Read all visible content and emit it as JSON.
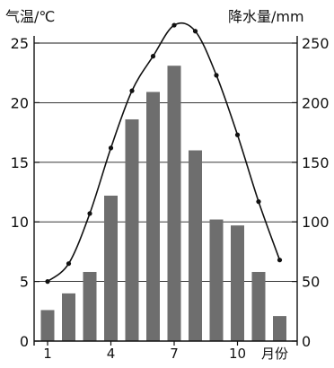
{
  "chart_data": {
    "type": "bar+line",
    "x": {
      "months": [
        1,
        2,
        3,
        4,
        5,
        6,
        7,
        8,
        9,
        10,
        11,
        12
      ],
      "tick_labels": [
        "1",
        "4",
        "7",
        "10"
      ],
      "tick_months": [
        1,
        4,
        7,
        10
      ],
      "label": "月份"
    },
    "left_axis": {
      "label": "气温/℃",
      "range": [
        0,
        25
      ],
      "ticks": [
        "0",
        "5",
        "10",
        "15",
        "20",
        "25"
      ],
      "tick_values": [
        0,
        5,
        10,
        15,
        20,
        25
      ]
    },
    "right_axis": {
      "label": "降水量/mm",
      "range": [
        0,
        250
      ],
      "ticks": [
        "0",
        "50",
        "100",
        "150",
        "200",
        "250"
      ],
      "tick_values": [
        0,
        50,
        100,
        150,
        200,
        250
      ]
    },
    "grid": "horizontal",
    "series": [
      {
        "kind": "bar",
        "axis": "right",
        "color": "#6e6e6e",
        "values": [
          26,
          40,
          58,
          122,
          186,
          209,
          231,
          160,
          102,
          97,
          58,
          21
        ]
      },
      {
        "kind": "line",
        "axis": "left",
        "color": "#111111",
        "values": [
          5.0,
          6.5,
          10.7,
          16.2,
          21.0,
          23.9,
          26.5,
          26.0,
          22.3,
          17.3,
          11.7,
          6.8
        ]
      }
    ]
  }
}
